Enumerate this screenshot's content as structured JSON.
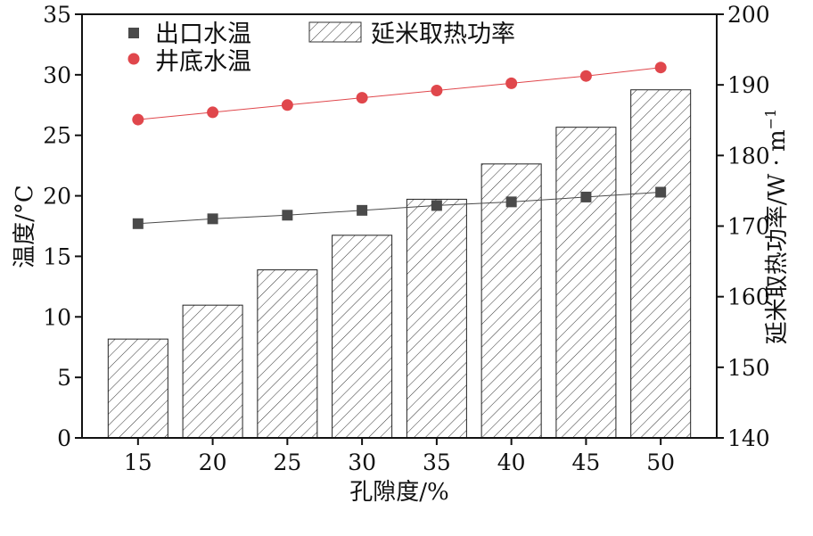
{
  "chart_data": {
    "type": "bar+line",
    "title": "",
    "xlabel": "孔隙度/%",
    "ylabel_left": "温度/°C",
    "ylabel_right_main": "延米取热功率/W · m",
    "ylabel_right_sup": "−1",
    "categories": [
      "15",
      "20",
      "25",
      "30",
      "35",
      "40",
      "45",
      "50"
    ],
    "ylim_left": [
      0,
      35
    ],
    "ylim_right": [
      140,
      200
    ],
    "yticks_left": [
      "0",
      "5",
      "10",
      "15",
      "20",
      "25",
      "30",
      "35"
    ],
    "yticks_right": [
      "140",
      "150",
      "160",
      "170",
      "180",
      "190",
      "200"
    ],
    "bar_series": {
      "name": "延米取热功率",
      "axis": "right",
      "values": [
        154.0,
        158.8,
        163.8,
        168.7,
        173.8,
        178.8,
        184.0,
        189.3
      ],
      "fill": "diagonal hatch",
      "color": "#222222"
    },
    "line_series": [
      {
        "name": "出口水温",
        "axis": "left",
        "marker": "square",
        "color": "#4a4a4a",
        "values": [
          17.7,
          18.1,
          18.4,
          18.8,
          19.2,
          19.5,
          19.9,
          20.3
        ]
      },
      {
        "name": "井底水温",
        "axis": "left",
        "marker": "circle",
        "color": "#e0474c",
        "values": [
          26.3,
          26.9,
          27.5,
          28.1,
          28.7,
          29.3,
          29.9,
          30.6
        ]
      }
    ],
    "legend": {
      "placement": "top-left",
      "items": [
        "出口水温",
        "井底水温",
        "延米取热功率"
      ]
    },
    "grid": false
  }
}
